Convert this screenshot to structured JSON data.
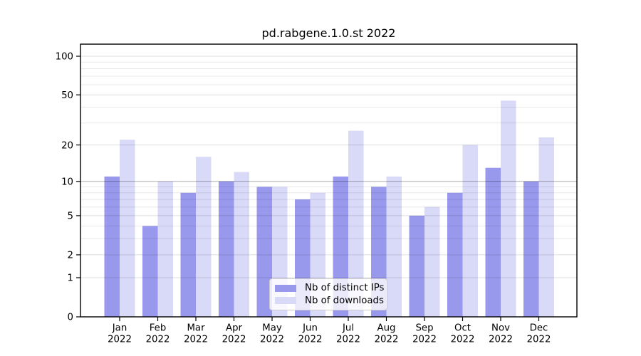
{
  "chart_data": {
    "type": "bar",
    "title": "pd.rabgene.1.0.st 2022",
    "categories": [
      "Jan",
      "Feb",
      "Mar",
      "Apr",
      "May",
      "Jun",
      "Jul",
      "Aug",
      "Sep",
      "Oct",
      "Nov",
      "Dec"
    ],
    "x_tick_second_line": "2022",
    "series": [
      {
        "name": "Nb of distinct IPs",
        "color": "#9898ec",
        "values": [
          11,
          4,
          8,
          10,
          9,
          7,
          11,
          9,
          5,
          8,
          13,
          10
        ]
      },
      {
        "name": "Nb of downloads",
        "color": "#d9d9f8",
        "values": [
          22,
          10,
          16,
          12,
          9,
          8,
          26,
          11,
          6,
          20,
          45,
          23
        ]
      }
    ],
    "y_scale": "log10(1+x)",
    "y_axis_ticks": [
      0,
      1,
      2,
      5,
      10,
      20,
      50,
      100
    ],
    "y_minor_gridlines": [
      3,
      4,
      6,
      7,
      8,
      9,
      30,
      40,
      60,
      70,
      80,
      90
    ],
    "ylim": [
      0,
      125
    ],
    "grid": "on",
    "legend_position": "lower center",
    "colors": {
      "background": "#ffffff",
      "axis": "#000000",
      "tick_label": "#000000",
      "grid_minor_rgba": "rgba(0,0,0,0.09)",
      "grid_major_rgba": "rgba(0,0,0,0.13)",
      "grid_emphasis_rgba": "rgba(0,0,0,0.32)",
      "grid_emphasis_value": 10,
      "legend_border": "#cccccc"
    }
  }
}
